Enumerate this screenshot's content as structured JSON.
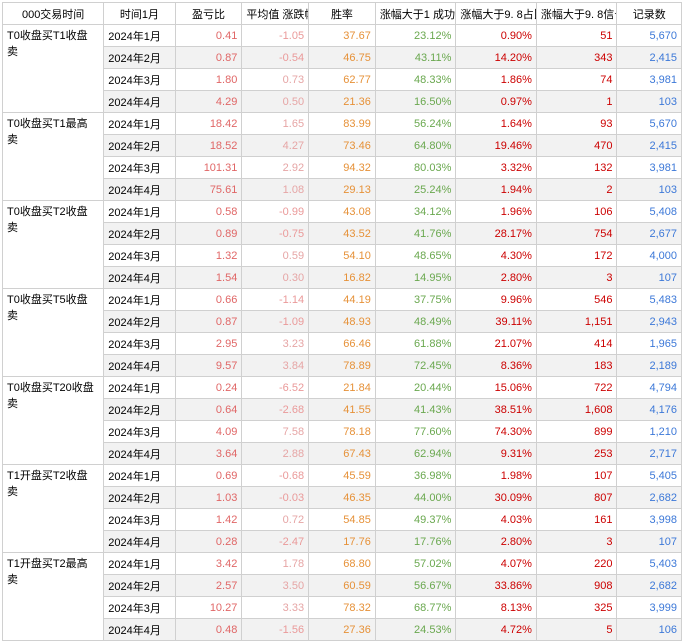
{
  "colors": {
    "pl": "#e06666",
    "avg_pos": "#e6a5a5",
    "avg_neg": "#ea9999",
    "win": "#e69138",
    "succ": "#6aa84f",
    "ratio": "#cc0000",
    "signal": "#cc0000",
    "count": "#3c78d8",
    "text": "#000000"
  },
  "headers": {
    "c0": "000交易时间",
    "c1": "时间1月",
    "c2": "盈亏比",
    "c3": "平均值\n涨跌幅",
    "c4": "胜率",
    "c5": "涨幅大于1\n成功率",
    "c6": "涨幅大于9.\n8占比",
    "c7": "涨幅大于9.\n8信号数",
    "c8": "记录数"
  },
  "groups": [
    {
      "label": "T0收盘买T1收盘\n卖",
      "rows": [
        {
          "time": "2024年1月",
          "pl": "0.41",
          "avg": "-1.05",
          "win": "37.67",
          "succ": "23.12%",
          "ratio": "0.90%",
          "signal": "51",
          "count": "5,670"
        },
        {
          "time": "2024年2月",
          "pl": "0.87",
          "avg": "-0.54",
          "win": "46.75",
          "succ": "43.11%",
          "ratio": "14.20%",
          "signal": "343",
          "count": "2,415"
        },
        {
          "time": "2024年3月",
          "pl": "1.80",
          "avg": "0.73",
          "win": "62.77",
          "succ": "48.33%",
          "ratio": "1.86%",
          "signal": "74",
          "count": "3,981"
        },
        {
          "time": "2024年4月",
          "pl": "4.29",
          "avg": "0.50",
          "win": "21.36",
          "succ": "16.50%",
          "ratio": "0.97%",
          "signal": "1",
          "count": "103"
        }
      ]
    },
    {
      "label": "T0收盘买T1最高\n卖",
      "rows": [
        {
          "time": "2024年1月",
          "pl": "18.42",
          "avg": "1.65",
          "win": "83.99",
          "succ": "56.24%",
          "ratio": "1.64%",
          "signal": "93",
          "count": "5,670"
        },
        {
          "time": "2024年2月",
          "pl": "18.52",
          "avg": "4.27",
          "win": "73.46",
          "succ": "64.80%",
          "ratio": "19.46%",
          "signal": "470",
          "count": "2,415"
        },
        {
          "time": "2024年3月",
          "pl": "101.31",
          "avg": "2.92",
          "win": "94.32",
          "succ": "80.03%",
          "ratio": "3.32%",
          "signal": "132",
          "count": "3,981"
        },
        {
          "time": "2024年4月",
          "pl": "75.61",
          "avg": "1.08",
          "win": "29.13",
          "succ": "25.24%",
          "ratio": "1.94%",
          "signal": "2",
          "count": "103"
        }
      ]
    },
    {
      "label": "T0收盘买T2收盘\n卖",
      "rows": [
        {
          "time": "2024年1月",
          "pl": "0.58",
          "avg": "-0.99",
          "win": "43.08",
          "succ": "34.12%",
          "ratio": "1.96%",
          "signal": "106",
          "count": "5,408"
        },
        {
          "time": "2024年2月",
          "pl": "0.89",
          "avg": "-0.75",
          "win": "43.52",
          "succ": "41.76%",
          "ratio": "28.17%",
          "signal": "754",
          "count": "2,677"
        },
        {
          "time": "2024年3月",
          "pl": "1.32",
          "avg": "0.59",
          "win": "54.10",
          "succ": "48.65%",
          "ratio": "4.30%",
          "signal": "172",
          "count": "4,000"
        },
        {
          "time": "2024年4月",
          "pl": "1.54",
          "avg": "0.30",
          "win": "16.82",
          "succ": "14.95%",
          "ratio": "2.80%",
          "signal": "3",
          "count": "107"
        }
      ]
    },
    {
      "label": "T0收盘买T5收盘\n卖",
      "rows": [
        {
          "time": "2024年1月",
          "pl": "0.66",
          "avg": "-1.14",
          "win": "44.19",
          "succ": "37.75%",
          "ratio": "9.96%",
          "signal": "546",
          "count": "5,483"
        },
        {
          "time": "2024年2月",
          "pl": "0.87",
          "avg": "-1.09",
          "win": "48.93",
          "succ": "48.49%",
          "ratio": "39.11%",
          "signal": "1,151",
          "count": "2,943"
        },
        {
          "time": "2024年3月",
          "pl": "2.95",
          "avg": "3.23",
          "win": "66.46",
          "succ": "61.88%",
          "ratio": "21.07%",
          "signal": "414",
          "count": "1,965"
        },
        {
          "time": "2024年4月",
          "pl": "9.57",
          "avg": "3.84",
          "win": "78.89",
          "succ": "72.45%",
          "ratio": "8.36%",
          "signal": "183",
          "count": "2,189"
        }
      ]
    },
    {
      "label": "T0收盘买T20收盘\n卖",
      "rows": [
        {
          "time": "2024年1月",
          "pl": "0.24",
          "avg": "-6.52",
          "win": "21.84",
          "succ": "20.44%",
          "ratio": "15.06%",
          "signal": "722",
          "count": "4,794"
        },
        {
          "time": "2024年2月",
          "pl": "0.64",
          "avg": "-2.68",
          "win": "41.55",
          "succ": "41.43%",
          "ratio": "38.51%",
          "signal": "1,608",
          "count": "4,176"
        },
        {
          "time": "2024年3月",
          "pl": "4.09",
          "avg": "7.58",
          "win": "78.18",
          "succ": "77.60%",
          "ratio": "74.30%",
          "signal": "899",
          "count": "1,210"
        },
        {
          "time": "2024年4月",
          "pl": "3.64",
          "avg": "2.88",
          "win": "67.43",
          "succ": "62.94%",
          "ratio": "9.31%",
          "signal": "253",
          "count": "2,717"
        }
      ]
    },
    {
      "label": "T1开盘买T2收盘\n卖",
      "rows": [
        {
          "time": "2024年1月",
          "pl": "0.69",
          "avg": "-0.68",
          "win": "45.59",
          "succ": "36.98%",
          "ratio": "1.98%",
          "signal": "107",
          "count": "5,405"
        },
        {
          "time": "2024年2月",
          "pl": "1.03",
          "avg": "-0.03",
          "win": "46.35",
          "succ": "44.00%",
          "ratio": "30.09%",
          "signal": "807",
          "count": "2,682"
        },
        {
          "time": "2024年3月",
          "pl": "1.42",
          "avg": "0.72",
          "win": "54.85",
          "succ": "49.37%",
          "ratio": "4.03%",
          "signal": "161",
          "count": "3,998"
        },
        {
          "time": "2024年4月",
          "pl": "0.28",
          "avg": "-2.47",
          "win": "17.76",
          "succ": "17.76%",
          "ratio": "2.80%",
          "signal": "3",
          "count": "107"
        }
      ]
    },
    {
      "label": "T1开盘买T2最高\n卖",
      "rows": [
        {
          "time": "2024年1月",
          "pl": "3.42",
          "avg": "1.78",
          "win": "68.80",
          "succ": "57.02%",
          "ratio": "4.07%",
          "signal": "220",
          "count": "5,403"
        },
        {
          "time": "2024年2月",
          "pl": "2.57",
          "avg": "3.50",
          "win": "60.59",
          "succ": "56.67%",
          "ratio": "33.86%",
          "signal": "908",
          "count": "2,682"
        },
        {
          "time": "2024年3月",
          "pl": "10.27",
          "avg": "3.33",
          "win": "78.32",
          "succ": "68.77%",
          "ratio": "8.13%",
          "signal": "325",
          "count": "3,999"
        },
        {
          "time": "2024年4月",
          "pl": "0.48",
          "avg": "-1.56",
          "win": "27.36",
          "succ": "24.53%",
          "ratio": "4.72%",
          "signal": "5",
          "count": "106"
        }
      ]
    }
  ]
}
